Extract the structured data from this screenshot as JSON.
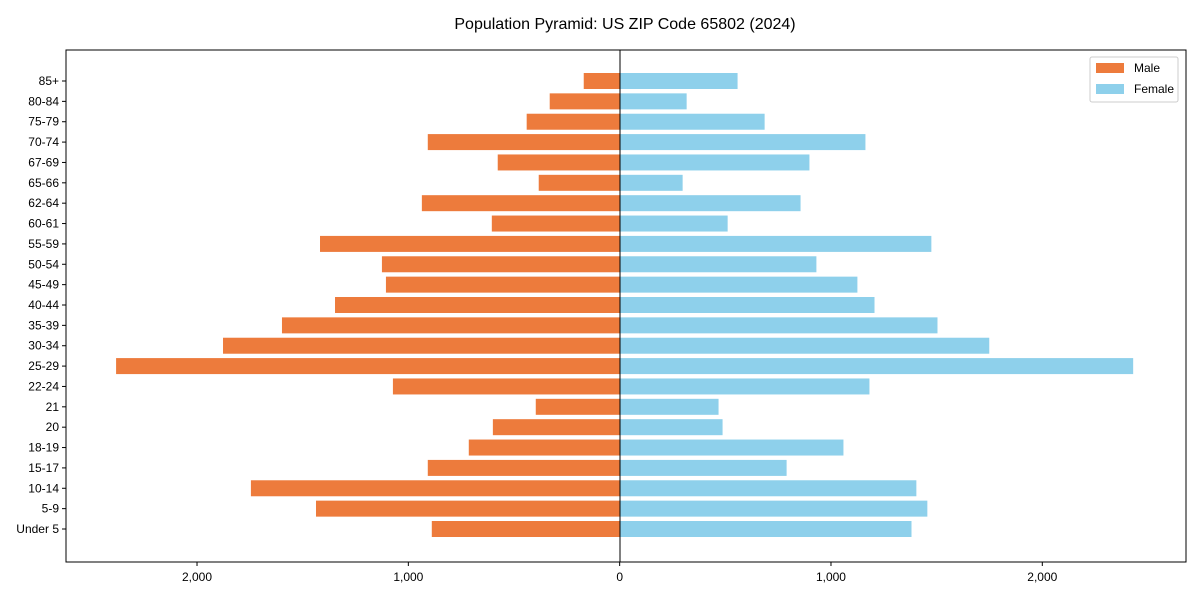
{
  "chart_data": {
    "type": "bar",
    "orientation": "horizontal",
    "title": "Population Pyramid: US ZIP Code 65802 (2024)",
    "xlabel": "",
    "ylabel": "",
    "categories": [
      "85+",
      "80-84",
      "75-79",
      "70-74",
      "67-69",
      "65-66",
      "62-64",
      "60-61",
      "55-59",
      "50-54",
      "45-49",
      "40-44",
      "35-39",
      "30-34",
      "25-29",
      "22-24",
      "21",
      "20",
      "18-19",
      "15-17",
      "10-14",
      "5-9",
      "Under 5"
    ],
    "series": [
      {
        "name": "Male",
        "color": "#ED7B3C",
        "side": "left",
        "values": [
          170,
          331,
          440,
          908,
          577,
          383,
          936,
          605,
          1418,
          1125,
          1106,
          1347,
          1598,
          1877,
          2383,
          1073,
          397,
          600,
          714,
          908,
          1745,
          1437,
          889
        ]
      },
      {
        "name": "Female",
        "color": "#8ED0EB",
        "side": "right",
        "values": [
          558,
          317,
          686,
          1163,
          898,
          298,
          856,
          511,
          1475,
          931,
          1125,
          1206,
          1504,
          1749,
          2430,
          1182,
          468,
          487,
          1059,
          790,
          1404,
          1456,
          1381
        ]
      }
    ],
    "xlim": [
      -2620,
      2680
    ],
    "xticks": [
      -2000,
      -1000,
      0,
      1000,
      2000
    ],
    "xtick_labels": [
      "2,000",
      "1,000",
      "0",
      "1,000",
      "2,000"
    ],
    "legend_position": "top-right",
    "grid": false
  }
}
